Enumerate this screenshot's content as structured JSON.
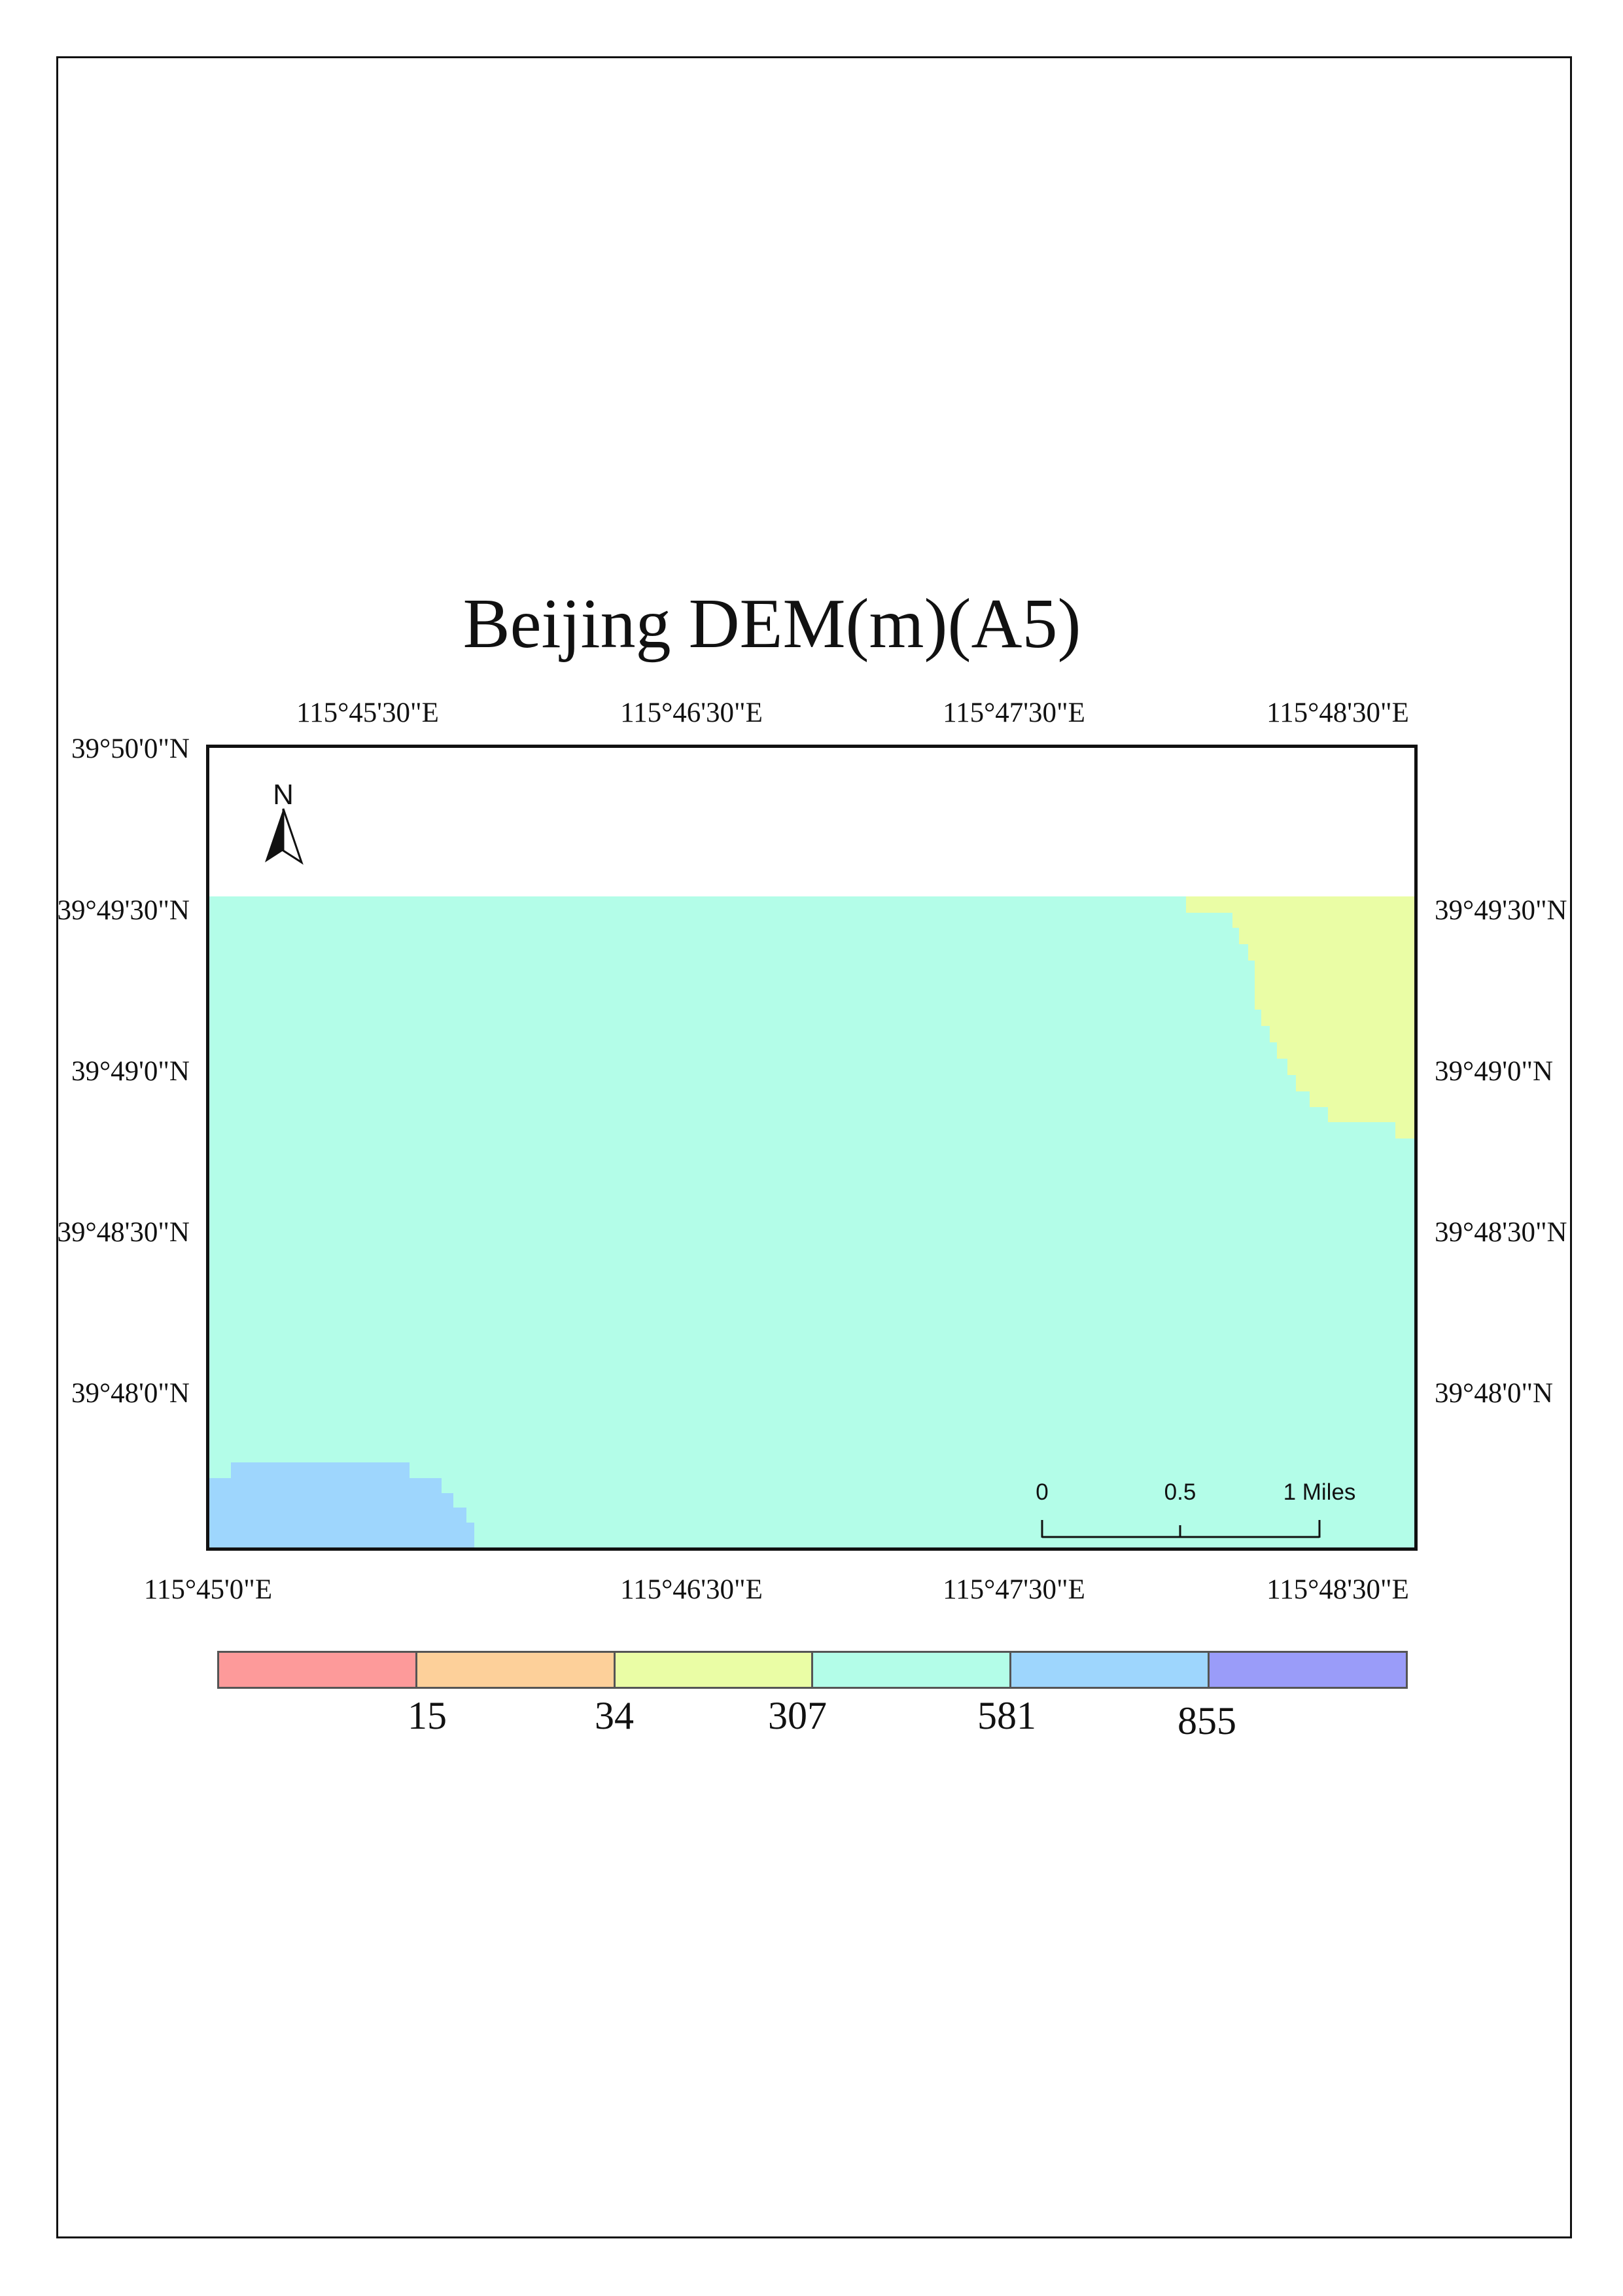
{
  "title": "Beijing DEM(m)(A5)",
  "top_coords": [
    "115°45'30\"E",
    "115°46'30\"E",
    "115°47'30\"E",
    "115°48'30\"E"
  ],
  "bottom_coords": [
    "115°45'0\"E",
    "115°46'30\"E",
    "115°47'30\"E",
    "115°48'30\"E"
  ],
  "left_coords": [
    "39°50'0\"N",
    "39°49'30\"N",
    "39°49'0\"N",
    "39°48'30\"N",
    "39°48'0\"N"
  ],
  "right_coords": [
    "39°49'30\"N",
    "39°49'0\"N",
    "39°48'30\"N",
    "39°48'0\"N"
  ],
  "north_arrow": {
    "label": "N"
  },
  "scale_bar": {
    "labels": [
      "0",
      "0.5",
      "1 Miles"
    ]
  },
  "legend": {
    "colors": [
      "#fd9a9a",
      "#fdd09a",
      "#eafda5",
      "#b3fde8",
      "#9ed6fd",
      "#9a9cf9"
    ],
    "breaks": [
      "15",
      "34",
      "307",
      "581",
      "855"
    ]
  },
  "map_colors": {
    "main": "#b3fde8",
    "northeast_zone": "#eafda5",
    "southwest_zone": "#9ed6fd",
    "no_data": "#ffffff"
  }
}
